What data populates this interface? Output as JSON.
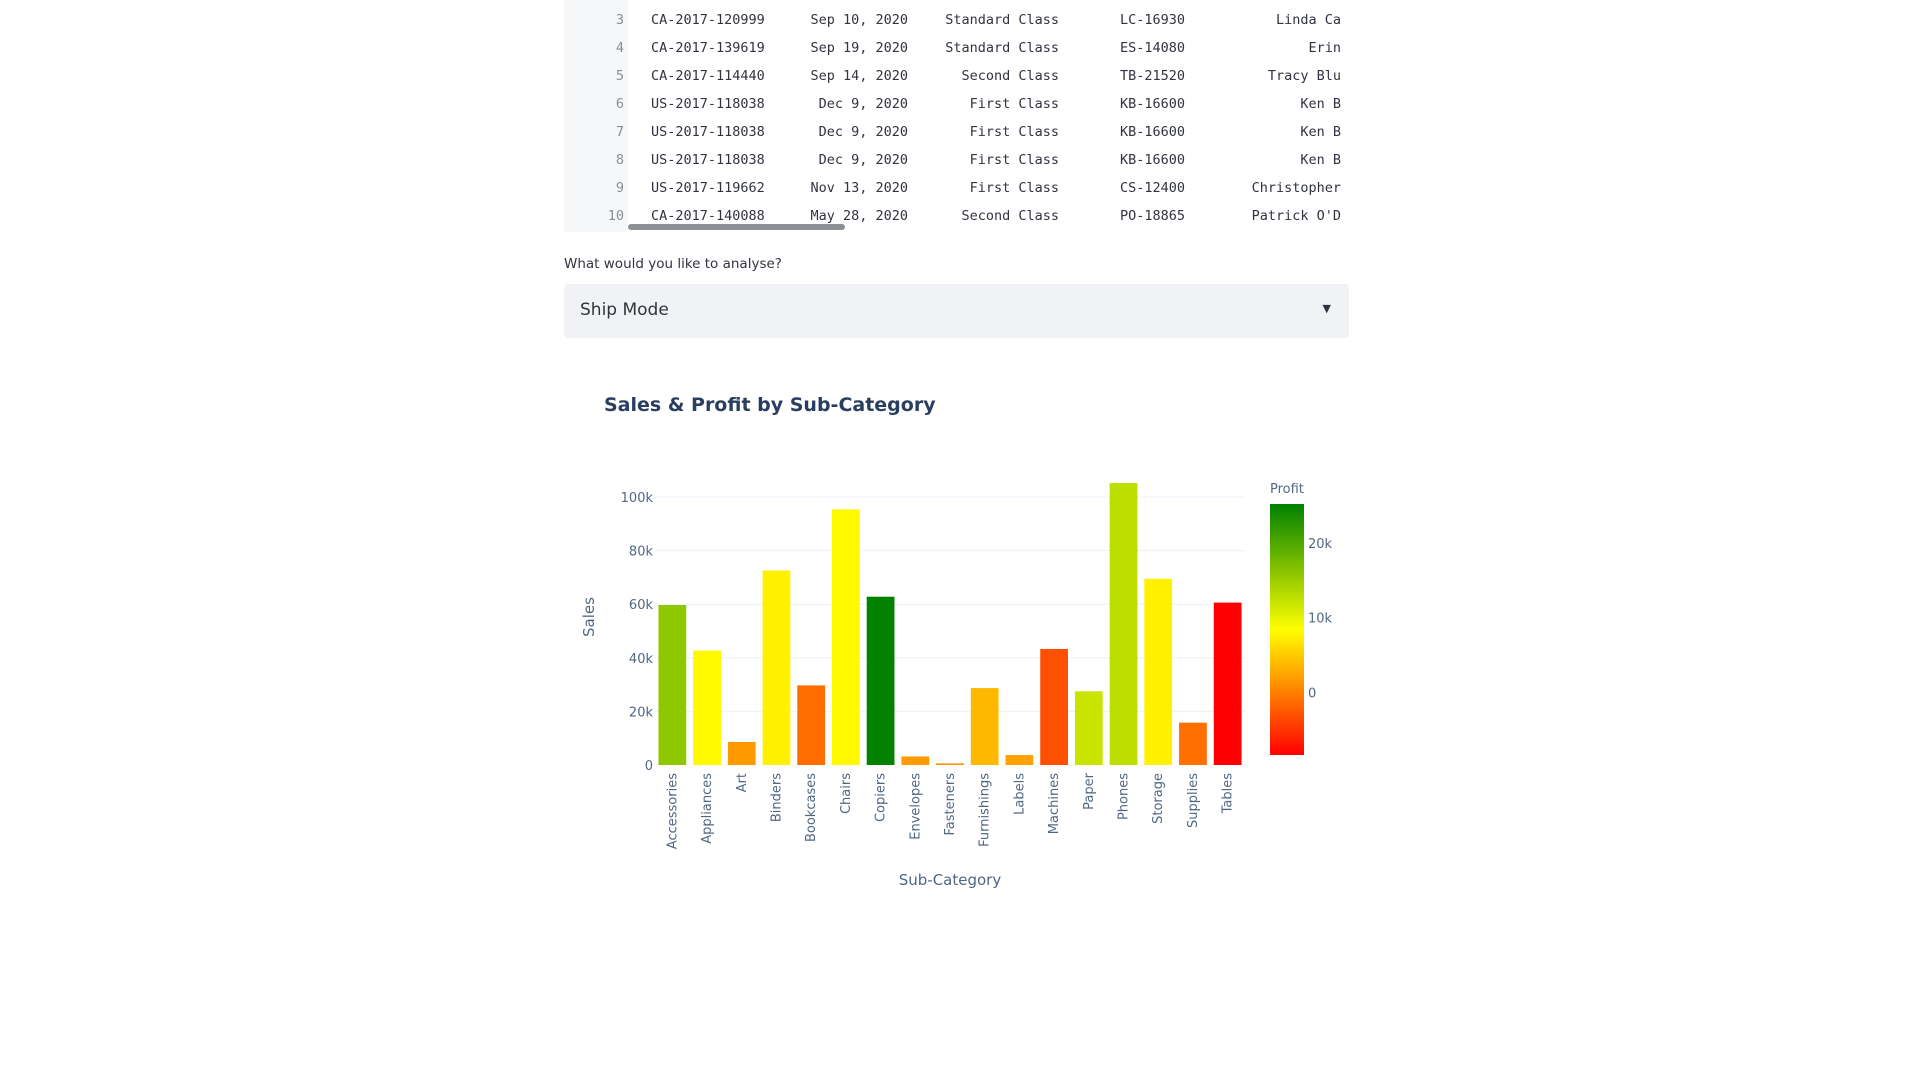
{
  "table": {
    "rows": [
      [
        "3",
        "CA-2017-120999",
        "Sep 10, 2020",
        "Standard Class",
        "LC-16930",
        "Linda Ca"
      ],
      [
        "4",
        "CA-2017-139619",
        "Sep 19, 2020",
        "Standard Class",
        "ES-14080",
        "Erin"
      ],
      [
        "5",
        "CA-2017-114440",
        "Sep 14, 2020",
        "Second Class",
        "TB-21520",
        "Tracy Blu"
      ],
      [
        "6",
        "US-2017-118038",
        "Dec 9, 2020",
        "First Class",
        "KB-16600",
        "Ken B"
      ],
      [
        "7",
        "US-2017-118038",
        "Dec 9, 2020",
        "First Class",
        "KB-16600",
        "Ken B"
      ],
      [
        "8",
        "US-2017-118038",
        "Dec 9, 2020",
        "First Class",
        "KB-16600",
        "Ken B"
      ],
      [
        "9",
        "US-2017-119662",
        "Nov 13, 2020",
        "First Class",
        "CS-12400",
        "Christopher"
      ],
      [
        "10",
        "CA-2017-140088",
        "May 28, 2020",
        "Second Class",
        "PO-18865",
        "Patrick O'D"
      ]
    ]
  },
  "analyse": {
    "label": "What would you like to analyse?",
    "value": "Ship Mode",
    "caret_icon": "caret-down"
  },
  "chart_data": {
    "type": "bar",
    "title": "Sales & Profit by Sub-Category",
    "xlabel": "Sub-Category",
    "ylabel": "Sales",
    "ylim": [
      0,
      105000
    ],
    "yticks": [
      0,
      20000,
      40000,
      60000,
      80000,
      100000
    ],
    "ytick_labels": [
      "0",
      "20k",
      "40k",
      "60k",
      "80k",
      "100k"
    ],
    "grid": true,
    "categories": [
      "Accessories",
      "Appliances",
      "Art",
      "Binders",
      "Bookcases",
      "Chairs",
      "Copiers",
      "Envelopes",
      "Fasteners",
      "Furnishings",
      "Labels",
      "Machines",
      "Paper",
      "Phones",
      "Storage",
      "Supplies",
      "Tables"
    ],
    "values": [
      59700,
      42700,
      8600,
      72600,
      29700,
      95400,
      62800,
      3200,
      600,
      28700,
      3700,
      43300,
      27500,
      105200,
      69500,
      15800,
      60600
    ],
    "color_values": [
      15800,
      8000,
      1700,
      7500,
      -1300,
      8000,
      25000,
      1800,
      1000,
      3700,
      2200,
      -3200,
      12000,
      12800,
      7500,
      -1000,
      -8400
    ],
    "colorbar": {
      "title": "Profit",
      "range": [
        -8400,
        25200
      ],
      "ticks": [
        0,
        10000,
        20000
      ],
      "tick_labels": [
        "0",
        "10k",
        "20k"
      ],
      "colorscale": [
        "#ff0000",
        "#ffff00",
        "#008000"
      ]
    }
  }
}
